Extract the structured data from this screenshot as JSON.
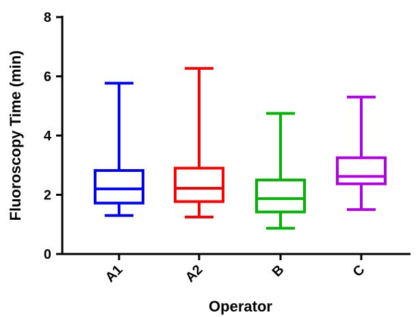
{
  "chart_data": {
    "type": "box",
    "xlabel": "Operator",
    "ylabel": "Fluoroscopy Time (min)",
    "ylim": [
      0,
      8
    ],
    "yticks": [
      0,
      2,
      4,
      6,
      8
    ],
    "grid": false,
    "categories": [
      "A1",
      "A2",
      "B",
      "C"
    ],
    "boxes": [
      {
        "category": "A1",
        "min": 1.3,
        "q1": 1.72,
        "median": 2.2,
        "q3": 2.82,
        "max": 5.77,
        "color": "#0000ff"
      },
      {
        "category": "A2",
        "min": 1.25,
        "q1": 1.77,
        "median": 2.22,
        "q3": 2.9,
        "max": 6.27,
        "color": "#ff0000"
      },
      {
        "category": "B",
        "min": 0.87,
        "q1": 1.42,
        "median": 1.87,
        "q3": 2.5,
        "max": 4.75,
        "color": "#00b400"
      },
      {
        "category": "C",
        "min": 1.5,
        "q1": 2.37,
        "median": 2.62,
        "q3": 3.25,
        "max": 5.3,
        "color": "#b400e6"
      }
    ]
  }
}
